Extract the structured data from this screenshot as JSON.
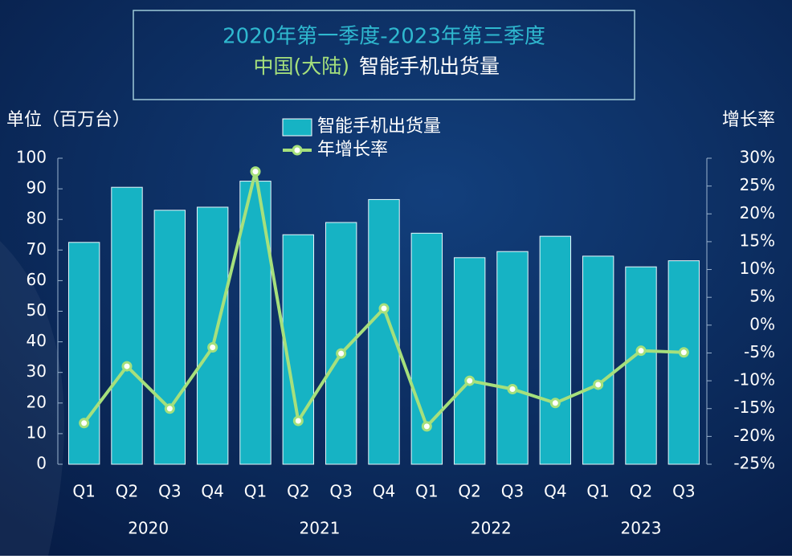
{
  "chart_data": {
    "type": "bar_line",
    "title": "2020年第一季度-2023年第三季度",
    "subtitle_highlight": "中国(大陆)",
    "subtitle": "智能手机出货量",
    "y_label": "单位（百万台）",
    "y2_label": "增长率",
    "categories": [
      "Q1",
      "Q2",
      "Q3",
      "Q4",
      "Q1",
      "Q2",
      "Q3",
      "Q4",
      "Q1",
      "Q2",
      "Q3",
      "Q4",
      "Q1",
      "Q2",
      "Q3"
    ],
    "category_groups": [
      "2020",
      "2021",
      "2022",
      "2023"
    ],
    "series": [
      {
        "name": "智能手机出货量",
        "type": "bar",
        "color": "#16b3c4",
        "values": [
          72.5,
          90.5,
          83,
          84,
          92.5,
          75,
          79,
          86.5,
          75.5,
          67.5,
          69.5,
          74.5,
          68,
          64.5,
          66.5
        ]
      },
      {
        "name": "年增长率",
        "type": "line",
        "axis": "y2",
        "color": "#a6e07c",
        "values": [
          -17.6,
          -7.4,
          -15,
          -4,
          27.6,
          -17.2,
          -5.1,
          3,
          -18.2,
          -10,
          -11.5,
          -14,
          -10.7,
          -4.6,
          -4.9
        ]
      }
    ],
    "ylim": [
      0,
      100
    ],
    "yticks": [
      0,
      10,
      20,
      30,
      40,
      50,
      60,
      70,
      80,
      90,
      100
    ],
    "y2lim": [
      -25,
      30
    ],
    "y2ticks": [
      {
        "value": -25,
        "label": "-25%"
      },
      {
        "value": -20,
        "label": "-20%"
      },
      {
        "value": -15,
        "label": "-15%"
      },
      {
        "value": -10,
        "label": "-10%"
      },
      {
        "value": -5,
        "label": "-5%"
      },
      {
        "value": 0,
        "label": "0%"
      },
      {
        "value": 5,
        "label": "5%"
      },
      {
        "value": 10,
        "label": "10%"
      },
      {
        "value": 15,
        "label": "15%"
      },
      {
        "value": 20,
        "label": "20%"
      },
      {
        "value": 25,
        "label": "25%"
      },
      {
        "value": 30,
        "label": "30%"
      }
    ]
  }
}
